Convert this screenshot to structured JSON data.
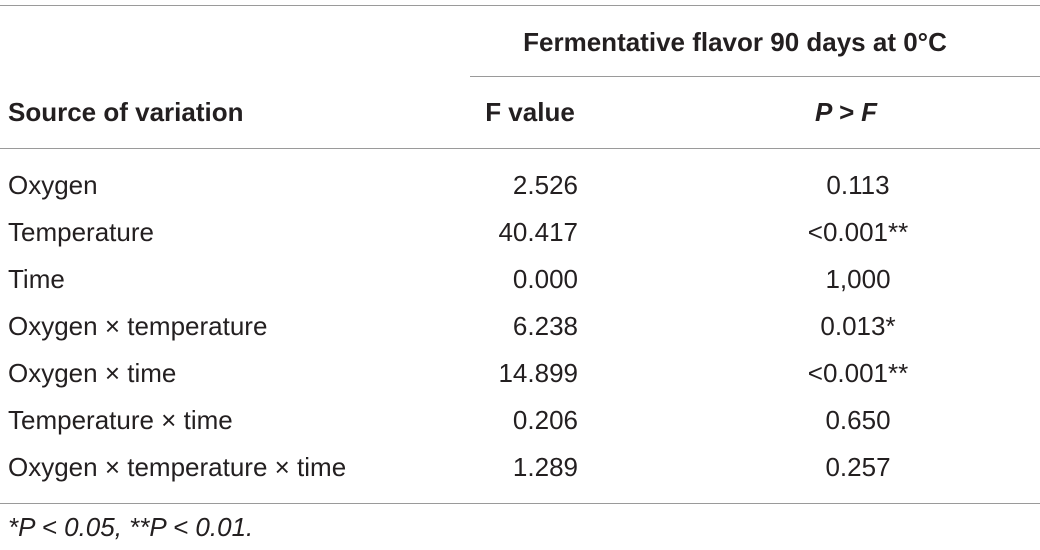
{
  "table": {
    "group_header": "Fermentative flavor 90 days at 0°C",
    "columns": [
      "Source of variation",
      "F value",
      "P > F"
    ],
    "rows": [
      [
        "Oxygen",
        "2.526",
        "0.113"
      ],
      [
        "Temperature",
        "40.417",
        "<0.001**"
      ],
      [
        "Time",
        "0.000",
        "1,000"
      ],
      [
        "Oxygen × temperature",
        "6.238",
        "0.013*"
      ],
      [
        "Oxygen × time",
        "14.899",
        "<0.001**"
      ],
      [
        "Temperature × time",
        "0.206",
        "0.650"
      ],
      [
        "Oxygen × temperature × time",
        "1.289",
        "0.257"
      ]
    ],
    "footnote": "*P < 0.05, **P < 0.01."
  }
}
